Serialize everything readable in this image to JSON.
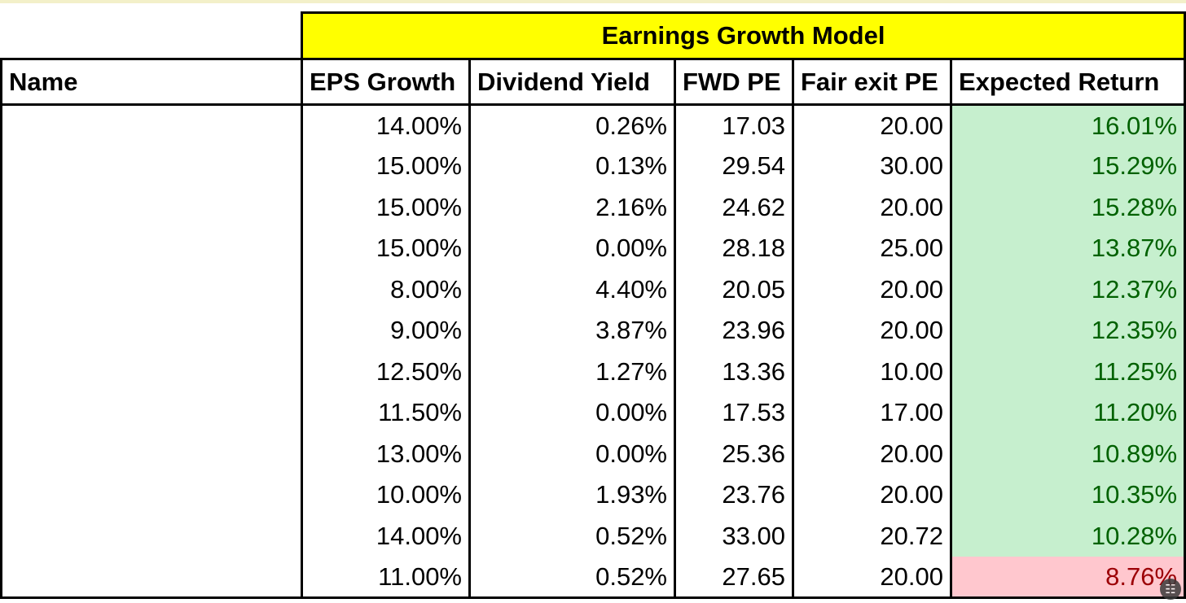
{
  "sheet": {
    "title": "Earnings Growth Model",
    "headers": {
      "name": "Name",
      "eps_growth": "EPS Growth",
      "dividend_yield": "Dividend Yield",
      "fwd_pe": "FWD PE",
      "fair_exit_pe": "Fair exit PE",
      "expected_return": "Expected Return"
    },
    "rows": [
      {
        "name": "",
        "eps_growth": "14.00%",
        "dividend_yield": "0.26%",
        "fwd_pe": "17.03",
        "fair_exit_pe": "20.00",
        "expected_return": "16.01%"
      },
      {
        "name": "",
        "eps_growth": "15.00%",
        "dividend_yield": "0.13%",
        "fwd_pe": "29.54",
        "fair_exit_pe": "30.00",
        "expected_return": "15.29%"
      },
      {
        "name": "",
        "eps_growth": "15.00%",
        "dividend_yield": "2.16%",
        "fwd_pe": "24.62",
        "fair_exit_pe": "20.00",
        "expected_return": "15.28%"
      },
      {
        "name": "",
        "eps_growth": "15.00%",
        "dividend_yield": "0.00%",
        "fwd_pe": "28.18",
        "fair_exit_pe": "25.00",
        "expected_return": "13.87%"
      },
      {
        "name": "",
        "eps_growth": "8.00%",
        "dividend_yield": "4.40%",
        "fwd_pe": "20.05",
        "fair_exit_pe": "20.00",
        "expected_return": "12.37%"
      },
      {
        "name": "",
        "eps_growth": "9.00%",
        "dividend_yield": "3.87%",
        "fwd_pe": "23.96",
        "fair_exit_pe": "20.00",
        "expected_return": "12.35%"
      },
      {
        "name": "",
        "eps_growth": "12.50%",
        "dividend_yield": "1.27%",
        "fwd_pe": "13.36",
        "fair_exit_pe": "10.00",
        "expected_return": "11.25%"
      },
      {
        "name": "",
        "eps_growth": "11.50%",
        "dividend_yield": "0.00%",
        "fwd_pe": "17.53",
        "fair_exit_pe": "17.00",
        "expected_return": "11.20%"
      },
      {
        "name": "",
        "eps_growth": "13.00%",
        "dividend_yield": "0.00%",
        "fwd_pe": "25.36",
        "fair_exit_pe": "20.00",
        "expected_return": "10.89%"
      },
      {
        "name": "",
        "eps_growth": "10.00%",
        "dividend_yield": "1.93%",
        "fwd_pe": "23.76",
        "fair_exit_pe": "20.00",
        "expected_return": "10.35%"
      },
      {
        "name": "",
        "eps_growth": "14.00%",
        "dividend_yield": "0.52%",
        "fwd_pe": "33.00",
        "fair_exit_pe": "20.72",
        "expected_return": "10.28%"
      },
      {
        "name": "",
        "eps_growth": "11.00%",
        "dividend_yield": "0.52%",
        "fwd_pe": "27.65",
        "fair_exit_pe": "20.00",
        "expected_return": "8.76%"
      }
    ]
  },
  "colors": {
    "title_fill": "#ffff00",
    "positive_fill": "#c6efce",
    "positive_text": "#006100",
    "negative_fill": "#ffc7ce",
    "negative_text": "#9c0006"
  },
  "overlay": {
    "corner_icon": "chat-bubble-icon"
  }
}
